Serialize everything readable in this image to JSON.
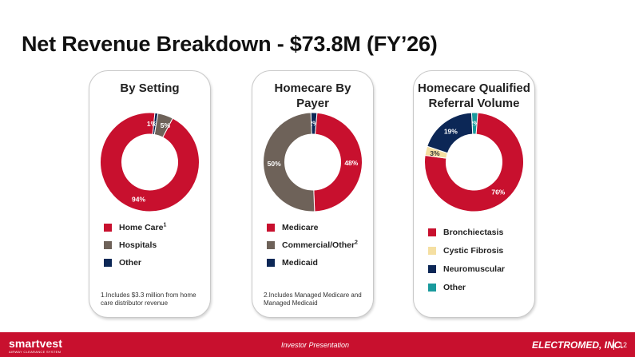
{
  "slide": {
    "title": "Net Revenue Breakdown - $73.8M (FY’26)",
    "footer_left_logo": "smartvest",
    "footer_left_tagline": "AIRWAY CLEARANCE SYSTEM",
    "footer_center": "Investor Presentation",
    "footer_right_logo": "ELECTROMED, INC.",
    "page_number": "12"
  },
  "panels": [
    {
      "title_lines": [
        "By Setting"
      ],
      "legend": [
        {
          "label": "Home Care",
          "sup": "1",
          "color": "#c8102e"
        },
        {
          "label": "Hospitals",
          "sup": "",
          "color": "#6e6259"
        },
        {
          "label": "Other",
          "sup": "",
          "color": "#0c2756"
        }
      ],
      "footnote": "1.Includes $3.3 million from home care distributor revenue"
    },
    {
      "title_lines": [
        "Homecare By",
        "Payer"
      ],
      "legend": [
        {
          "label": "Medicare",
          "sup": "",
          "color": "#c8102e"
        },
        {
          "label": "Commercial/Other",
          "sup": "2",
          "color": "#6e6259"
        },
        {
          "label": "Medicaid",
          "sup": "",
          "color": "#0c2756"
        }
      ],
      "footnote": "2.Includes Managed Medicare and Managed Medicaid"
    },
    {
      "title_lines": [
        "Homecare Qualified",
        "Referral Volume"
      ],
      "legend": [
        {
          "label": "Bronchiectasis",
          "sup": "",
          "color": "#c8102e"
        },
        {
          "label": "Cystic Fibrosis",
          "sup": "",
          "color": "#f5dfa2"
        },
        {
          "label": "Neuromuscular",
          "sup": "",
          "color": "#0c2756"
        },
        {
          "label": "Other",
          "sup": "",
          "color": "#1a9a9d"
        }
      ],
      "footnote": ""
    }
  ],
  "chart_data": [
    {
      "type": "pie",
      "title": "By Setting",
      "slices": [
        {
          "name": "Home Care",
          "value": 94,
          "label": "94%",
          "color": "#c8102e"
        },
        {
          "name": "Other",
          "value": 1,
          "label": "1%",
          "color": "#0c2756"
        },
        {
          "name": "Hospitals",
          "value": 5,
          "label": "5%",
          "color": "#6e6259"
        }
      ]
    },
    {
      "type": "pie",
      "title": "Homecare By Payer",
      "slices": [
        {
          "name": "Medicaid",
          "value": 2,
          "label": "2%",
          "color": "#0c2756"
        },
        {
          "name": "Medicare",
          "value": 48,
          "label": "48%",
          "color": "#c8102e"
        },
        {
          "name": "Commercial/Other",
          "value": 50,
          "label": "50%",
          "color": "#6e6259"
        }
      ]
    },
    {
      "type": "pie",
      "title": "Homecare Qualified Referral Volume",
      "slices": [
        {
          "name": "Other",
          "value": 2,
          "label": "2%",
          "color": "#1a9a9d"
        },
        {
          "name": "Bronchiectasis",
          "value": 76,
          "label": "76%",
          "color": "#c8102e"
        },
        {
          "name": "Cystic Fibrosis",
          "value": 3,
          "label": "3%",
          "color": "#f5dfa2"
        },
        {
          "name": "Neuromuscular",
          "value": 19,
          "label": "19%",
          "color": "#0c2756"
        }
      ]
    }
  ]
}
